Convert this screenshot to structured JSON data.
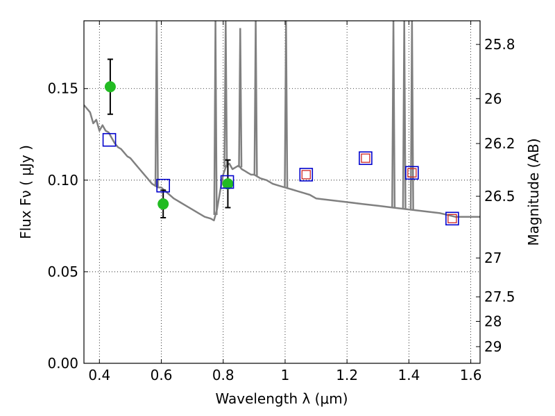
{
  "chart_data": {
    "type": "scatter",
    "xlabel": "Wavelength  λ (μm)",
    "ylabel": "Flux  Fν  ( μJy )",
    "ylabel_right": "Magnitude (AB)",
    "xlim": [
      0.35,
      1.63
    ],
    "ylim": [
      0.0,
      0.187
    ],
    "grid": true,
    "x_ticks": [
      {
        "value": 0.4,
        "label": "0.4"
      },
      {
        "value": 0.6,
        "label": "0.6"
      },
      {
        "value": 0.8,
        "label": "0.8"
      },
      {
        "value": 1.0,
        "label": "1"
      },
      {
        "value": 1.2,
        "label": "1.2"
      },
      {
        "value": 1.4,
        "label": "1.4"
      },
      {
        "value": 1.6,
        "label": "1.6"
      }
    ],
    "y_ticks": [
      {
        "value": 0.0,
        "label": "0.00"
      },
      {
        "value": 0.05,
        "label": "0.05"
      },
      {
        "value": 0.1,
        "label": "0.10"
      },
      {
        "value": 0.15,
        "label": "0.15"
      }
    ],
    "right_ticks": [
      {
        "flux": 0.1741,
        "label": "25.8"
      },
      {
        "flux": 0.1445,
        "label": "26"
      },
      {
        "flux": 0.12,
        "label": "26.2"
      },
      {
        "flux": 0.0912,
        "label": "26.5"
      },
      {
        "flux": 0.0575,
        "label": "27"
      },
      {
        "flux": 0.0363,
        "label": "27.5"
      },
      {
        "flux": 0.0229,
        "label": "28"
      },
      {
        "flux": 0.0091,
        "label": "29"
      }
    ],
    "colors": {
      "template": "#808080",
      "observed": "#22bb22",
      "model_box": "#0000cc",
      "model_inner": "#cc2222",
      "error_bar": "#000000"
    },
    "series": [
      {
        "kind": "template_sed",
        "x": [
          0.35,
          0.36,
          0.37,
          0.38,
          0.39,
          0.4,
          0.41,
          0.42,
          0.43,
          0.44,
          0.45,
          0.46,
          0.47,
          0.48,
          0.49,
          0.5,
          0.51,
          0.52,
          0.53,
          0.54,
          0.55,
          0.56,
          0.57,
          0.58,
          0.59,
          0.6,
          0.62,
          0.64,
          0.66,
          0.68,
          0.7,
          0.72,
          0.74,
          0.76,
          0.77,
          0.78,
          0.79,
          0.8,
          0.81,
          0.82,
          0.83,
          0.84,
          0.85,
          0.86,
          0.87,
          0.88,
          0.89,
          0.9,
          0.91,
          0.92,
          0.94,
          0.96,
          0.98,
          1.0,
          1.02,
          1.04,
          1.06,
          1.08,
          1.1,
          1.15,
          1.2,
          1.25,
          1.3,
          1.35,
          1.4,
          1.45,
          1.5,
          1.55,
          1.6,
          1.63
        ],
        "y": [
          0.141,
          0.139,
          0.137,
          0.131,
          0.133,
          0.127,
          0.13,
          0.127,
          0.126,
          0.123,
          0.12,
          0.118,
          0.117,
          0.115,
          0.113,
          0.112,
          0.11,
          0.108,
          0.106,
          0.104,
          0.102,
          0.1,
          0.098,
          0.097,
          0.096,
          0.096,
          0.093,
          0.09,
          0.088,
          0.086,
          0.084,
          0.082,
          0.08,
          0.079,
          0.078,
          0.084,
          0.094,
          0.103,
          0.108,
          0.109,
          0.106,
          0.107,
          0.108,
          0.106,
          0.105,
          0.104,
          0.103,
          0.103,
          0.102,
          0.101,
          0.1,
          0.098,
          0.097,
          0.096,
          0.095,
          0.094,
          0.093,
          0.092,
          0.09,
          0.089,
          0.088,
          0.087,
          0.086,
          0.085,
          0.084,
          0.083,
          0.082,
          0.08,
          0.08,
          0.08
        ]
      },
      {
        "kind": "template_emission_lines",
        "lines": [
          {
            "x": 0.585,
            "peak": 0.187
          },
          {
            "x": 0.775,
            "peak": 0.187
          },
          {
            "x": 0.808,
            "peak": 0.187
          },
          {
            "x": 0.855,
            "peak": 0.183
          },
          {
            "x": 0.905,
            "peak": 0.187
          },
          {
            "x": 1.003,
            "peak": 0.187
          },
          {
            "x": 1.35,
            "peak": 0.187
          },
          {
            "x": 1.385,
            "peak": 0.187
          },
          {
            "x": 1.41,
            "peak": 0.187
          }
        ]
      },
      {
        "kind": "observed",
        "x": [
          0.435,
          0.606,
          0.815
        ],
        "y": [
          0.151,
          0.087,
          0.098
        ],
        "yerr": [
          0.015,
          0.0075,
          0.013
        ]
      },
      {
        "kind": "model_photometry",
        "x": [
          0.432,
          0.606,
          0.813,
          1.068,
          1.26,
          1.41,
          1.54
        ],
        "y": [
          0.122,
          0.097,
          0.099,
          0.103,
          0.112,
          0.104,
          0.079
        ],
        "inner": [
          false,
          false,
          false,
          true,
          true,
          true,
          true
        ]
      }
    ]
  }
}
